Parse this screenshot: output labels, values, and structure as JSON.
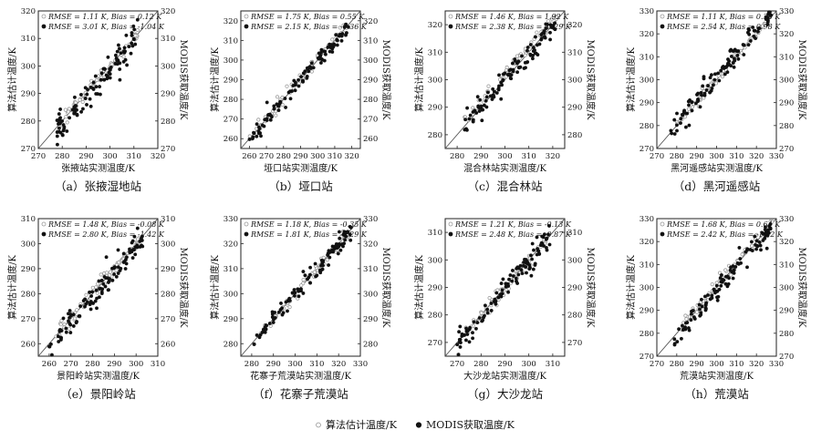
{
  "legend": {
    "items": [
      {
        "label": "算法估计温度/K",
        "marker": "hollow-circle",
        "color": "#9a9a9a"
      },
      {
        "label": "MODIS获取温度/K",
        "marker": "filled-circle",
        "color": "#111111"
      }
    ]
  },
  "chart_data": [
    {
      "type": "scatter",
      "caption": "（a）张掖湿地站",
      "xlabel": "张掖站实测温度/K",
      "ylabel": "算法估计温度/K",
      "y2label": "MODIS获取温度/K",
      "xlim": [
        270,
        320
      ],
      "ylim": [
        270,
        320
      ],
      "xticks": [
        270,
        280,
        290,
        300,
        310,
        320
      ],
      "yticks": [
        270,
        280,
        290,
        300,
        310,
        320
      ],
      "annotations": [
        {
          "text": "RMSE = 1.11 K, Bias = 0.12 K",
          "marker": "hollow"
        },
        {
          "text": "RMSE = 3.01 K, Bias = -1.04 K",
          "marker": "filled"
        }
      ],
      "series": [
        {
          "name": "算法估计温度/K",
          "range": [
            278,
            312
          ],
          "bias": 0.12,
          "noise": 1.1
        },
        {
          "name": "MODIS获取温度/K",
          "range": [
            276,
            312
          ],
          "bias": -1.04,
          "noise": 2.8
        }
      ]
    },
    {
      "type": "scatter",
      "caption": "（b）垭口站",
      "xlabel": "垭口站实测温度/K",
      "ylabel": "算法估计温度/K",
      "y2label": "MODIS获取温度/K",
      "xlim": [
        255,
        325
      ],
      "ylim": [
        255,
        325
      ],
      "xticks": [
        260,
        270,
        280,
        290,
        300,
        310,
        320
      ],
      "yticks": [
        260,
        270,
        280,
        290,
        300,
        310,
        320
      ],
      "annotations": [
        {
          "text": "RMSE = 1.75 K, Bias = 0.55 K",
          "marker": "hollow"
        },
        {
          "text": "RMSE = 2.15 K, Bias = -0.36 K",
          "marker": "filled"
        }
      ],
      "series": [
        {
          "name": "算法估计温度/K",
          "range": [
            260,
            318
          ],
          "bias": 0.55,
          "noise": 1.6
        },
        {
          "name": "MODIS获取温度/K",
          "range": [
            259,
            318
          ],
          "bias": -0.36,
          "noise": 2.0
        }
      ]
    },
    {
      "type": "scatter",
      "caption": "（c）混合林站",
      "xlabel": "混合林站实测温度/K",
      "ylabel": "算法估计温度/K",
      "y2label": "MODIS获取温度/K",
      "xlim": [
        275,
        325
      ],
      "ylim": [
        275,
        325
      ],
      "xticks": [
        280,
        290,
        300,
        310,
        320
      ],
      "yticks": [
        280,
        290,
        300,
        310,
        320
      ],
      "annotations": [
        {
          "text": "RMSE = 1.46 K, Bias = 1.92 K",
          "marker": "hollow"
        },
        {
          "text": "RMSE = 2.38 K, Bias = -0.29 K",
          "marker": "filled"
        }
      ],
      "series": [
        {
          "name": "算法估计温度/K",
          "range": [
            283,
            322
          ],
          "bias": 1.92,
          "noise": 1.4
        },
        {
          "name": "MODIS获取温度/K",
          "range": [
            283,
            322
          ],
          "bias": -0.29,
          "noise": 2.2
        }
      ]
    },
    {
      "type": "scatter",
      "caption": "（d）黑河遥感站",
      "xlabel": "黑河遥感站实测温度/K",
      "ylabel": "算法估计温度/K",
      "y2label": "MODIS获取温度/K",
      "xlim": [
        270,
        330
      ],
      "ylim": [
        270,
        330
      ],
      "xticks": [
        270,
        280,
        290,
        300,
        310,
        320,
        330
      ],
      "yticks": [
        270,
        280,
        290,
        300,
        310,
        320,
        330
      ],
      "annotations": [
        {
          "text": "RMSE = 1.11 K, Bias = 0.33 K",
          "marker": "hollow"
        },
        {
          "text": "RMSE = 2.54 K, Bias = 0.98 K",
          "marker": "filled"
        }
      ],
      "series": [
        {
          "name": "算法估计温度/K",
          "range": [
            280,
            328
          ],
          "bias": 0.33,
          "noise": 1.1
        },
        {
          "name": "MODIS获取温度/K",
          "range": [
            277,
            328
          ],
          "bias": 0.98,
          "noise": 2.4
        }
      ]
    },
    {
      "type": "scatter",
      "caption": "（e）景阳岭站",
      "xlabel": "景阳岭站实测温度/K",
      "ylabel": "算法估计温度/K",
      "y2label": "MODIS获取温度/K",
      "xlim": [
        255,
        310
      ],
      "ylim": [
        255,
        310
      ],
      "xticks": [
        260,
        270,
        280,
        290,
        300,
        310
      ],
      "yticks": [
        260,
        270,
        280,
        290,
        300,
        310
      ],
      "annotations": [
        {
          "text": "RMSE = 1.48 K, Bias = -0.08 K",
          "marker": "hollow"
        },
        {
          "text": "RMSE = 2.80 K, Bias = -1.42 K",
          "marker": "filled"
        }
      ],
      "series": [
        {
          "name": "算法估计温度/K",
          "range": [
            262,
            303
          ],
          "bias": -0.08,
          "noise": 1.4
        },
        {
          "name": "MODIS获取温度/K",
          "range": [
            260,
            303
          ],
          "bias": -1.42,
          "noise": 2.6
        }
      ]
    },
    {
      "type": "scatter",
      "caption": "（f）花寨子荒漠站",
      "xlabel": "花寨子荒漠站实测温度/K",
      "ylabel": "算法估计温度/K",
      "y2label": "MODIS获取温度/K",
      "xlim": [
        275,
        330
      ],
      "ylim": [
        275,
        330
      ],
      "xticks": [
        280,
        290,
        300,
        310,
        320,
        330
      ],
      "yticks": [
        280,
        290,
        300,
        310,
        320,
        330
      ],
      "annotations": [
        {
          "text": "RMSE = 1.18 K, Bias = -0.35 K",
          "marker": "hollow"
        },
        {
          "text": "RMSE = 1.81 K, Bias = -0.29 K",
          "marker": "filled"
        }
      ],
      "series": [
        {
          "name": "算法估计温度/K",
          "range": [
            284,
            326
          ],
          "bias": -0.35,
          "noise": 1.1
        },
        {
          "name": "MODIS获取温度/K",
          "range": [
            280,
            326
          ],
          "bias": -0.29,
          "noise": 1.7
        }
      ]
    },
    {
      "type": "scatter",
      "caption": "（g）大沙龙站",
      "xlabel": "大沙龙站实测温度/K",
      "ylabel": "算法估计温度/K",
      "y2label": "MODIS获取温度/K",
      "xlim": [
        265,
        315
      ],
      "ylim": [
        265,
        315
      ],
      "xticks": [
        270,
        280,
        290,
        300,
        310
      ],
      "yticks": [
        270,
        280,
        290,
        300,
        310
      ],
      "annotations": [
        {
          "text": "RMSE = 1.21 K, Bias = -0.13 K",
          "marker": "hollow"
        },
        {
          "text": "RMSE = 2.48 K, Bias = -0.87 K",
          "marker": "filled"
        }
      ],
      "series": [
        {
          "name": "算法估计温度/K",
          "range": [
            272,
            309
          ],
          "bias": -0.13,
          "noise": 1.2
        },
        {
          "name": "MODIS获取温度/K",
          "range": [
            270,
            309
          ],
          "bias": -0.87,
          "noise": 2.3
        }
      ]
    },
    {
      "type": "scatter",
      "caption": "（h）荒漠站",
      "xlabel": "荒漠站实测温度/K",
      "ylabel": "算法估计温度/K",
      "y2label": "MODIS获取温度/K",
      "xlim": [
        270,
        330
      ],
      "ylim": [
        270,
        330
      ],
      "xticks": [
        270,
        280,
        290,
        300,
        310,
        320,
        330
      ],
      "yticks": [
        270,
        280,
        290,
        300,
        310,
        320,
        330
      ],
      "annotations": [
        {
          "text": "RMSE = 1.68 K, Bias = 0.64 K",
          "marker": "hollow"
        },
        {
          "text": "RMSE = 2.42 K, Bias = -1.32 K",
          "marker": "filled"
        }
      ],
      "series": [
        {
          "name": "算法估计温度/K",
          "range": [
            280,
            328
          ],
          "bias": 0.64,
          "noise": 1.6
        },
        {
          "name": "MODIS获取温度/K",
          "range": [
            277,
            328
          ],
          "bias": -1.32,
          "noise": 2.3
        }
      ]
    }
  ]
}
